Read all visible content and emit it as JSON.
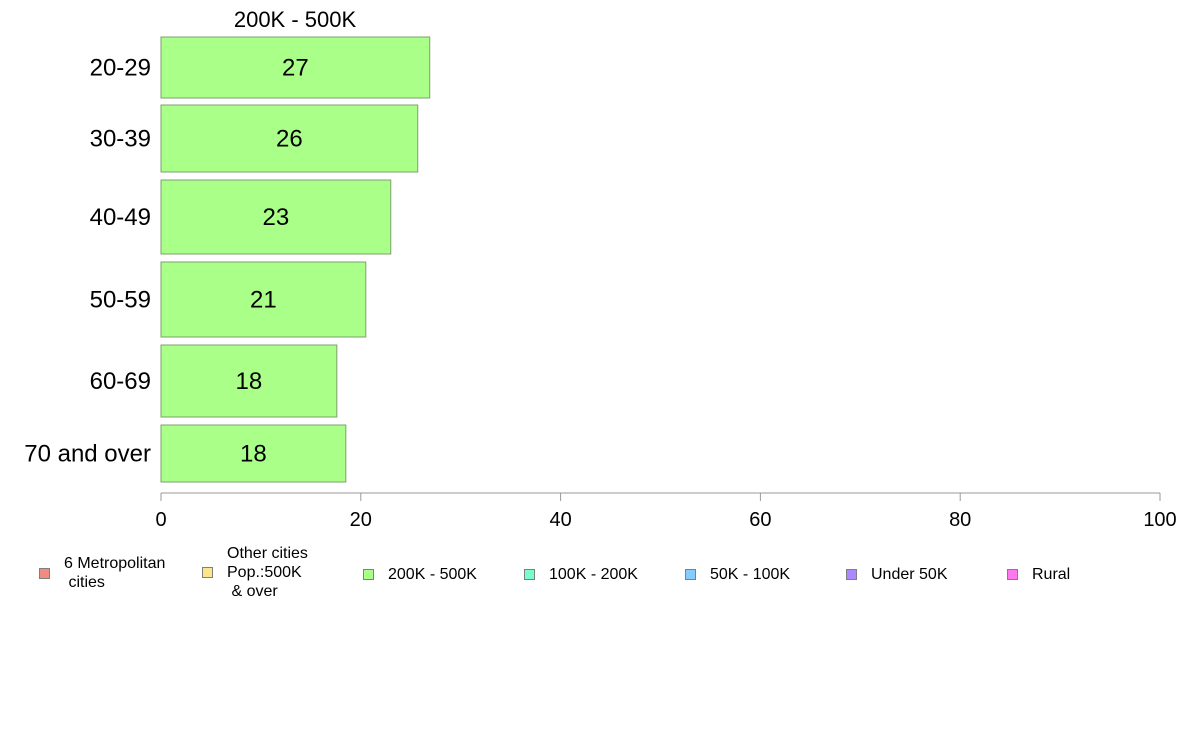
{
  "chart_data": {
    "type": "bar",
    "orientation": "horizontal",
    "panel_title": "200K - 500K",
    "categories": [
      "20-29",
      "30-39",
      "40-49",
      "50-59",
      "60-69",
      "70 and over"
    ],
    "series": [
      {
        "name": "200K - 500K",
        "values": [
          27,
          26,
          23,
          21,
          18,
          18
        ]
      }
    ],
    "bar_lengths": [
      26.9,
      25.7,
      23.0,
      20.5,
      17.6,
      18.5
    ],
    "xlim": [
      0,
      100
    ],
    "x_ticks": [
      0,
      20,
      40,
      60,
      80,
      100
    ],
    "grid": false,
    "legend_position": "bottom",
    "bar_color": "#aaff88",
    "bar_edge_color": "#7f9f6f",
    "axis_color": "#999999"
  },
  "legend": {
    "items": [
      {
        "label": "6 Metropolitan\n cities",
        "color": "#f08b82"
      },
      {
        "label": "Other cities\nPop.:500K\n & over",
        "color": "#fde68a"
      },
      {
        "label": "200K - 500K",
        "color": "#aaff88"
      },
      {
        "label": "100K - 200K",
        "color": "#77ffcc"
      },
      {
        "label": "50K - 100K",
        "color": "#88ccff"
      },
      {
        "label": "Under 50K",
        "color": "#aa88ff"
      },
      {
        "label": "Rural",
        "color": "#ff77ee"
      }
    ]
  }
}
